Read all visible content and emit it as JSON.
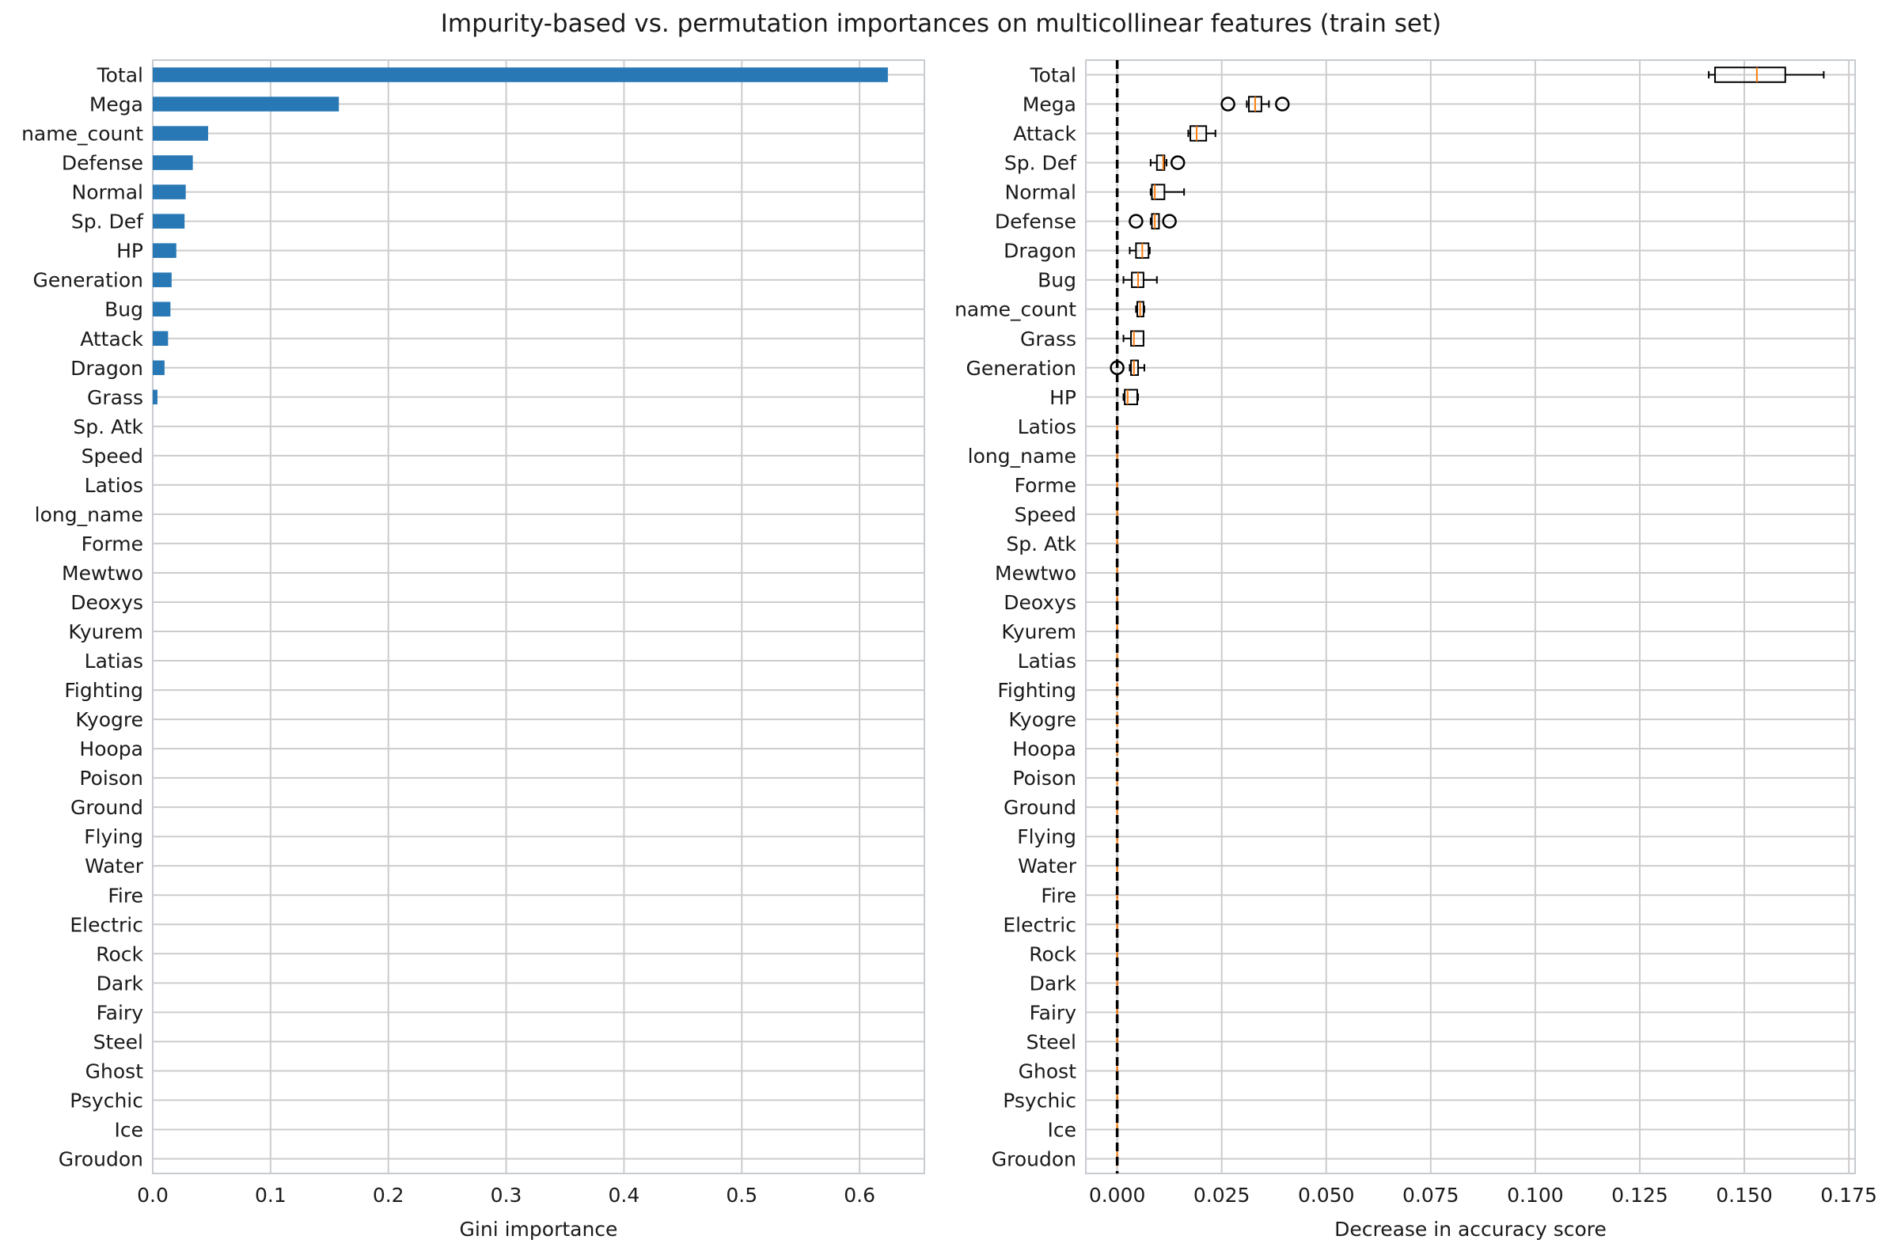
{
  "figure": {
    "title": "Impurity-based vs. permutation importances on multicollinear features (train set)"
  },
  "chart_data": [
    {
      "type": "bar",
      "orientation": "horizontal",
      "xlabel": "Gini importance",
      "xlim": [
        0,
        0.655
      ],
      "xticks": [
        0.0,
        0.1,
        0.2,
        0.3,
        0.4,
        0.5,
        0.6
      ],
      "xtick_labels": [
        "0.0",
        "0.1",
        "0.2",
        "0.3",
        "0.4",
        "0.5",
        "0.6"
      ],
      "grid": true,
      "bar_color": "#2878b5",
      "categories": [
        "Total",
        "Mega",
        "name_count",
        "Defense",
        "Normal",
        "Sp. Def",
        "HP",
        "Generation",
        "Bug",
        "Attack",
        "Dragon",
        "Grass",
        "Sp. Atk",
        "Speed",
        "Latios",
        "long_name",
        "Forme",
        "Mewtwo",
        "Deoxys",
        "Kyurem",
        "Latias",
        "Fighting",
        "Kyogre",
        "Hoopa",
        "Poison",
        "Ground",
        "Flying",
        "Water",
        "Fire",
        "Electric",
        "Rock",
        "Dark",
        "Fairy",
        "Steel",
        "Ghost",
        "Psychic",
        "Ice",
        "Groudon"
      ],
      "values": [
        0.624,
        0.158,
        0.047,
        0.034,
        0.028,
        0.027,
        0.02,
        0.016,
        0.015,
        0.013,
        0.01,
        0.004,
        0,
        0,
        0,
        0,
        0,
        0,
        0,
        0,
        0,
        0,
        0,
        0,
        0,
        0,
        0,
        0,
        0,
        0,
        0,
        0,
        0,
        0,
        0,
        0,
        0,
        0
      ]
    },
    {
      "type": "box",
      "orientation": "horizontal",
      "xlabel": "Decrease in accuracy score",
      "xlim": [
        -0.0075,
        0.1765
      ],
      "xticks": [
        0.0,
        0.025,
        0.05,
        0.075,
        0.1,
        0.125,
        0.15,
        0.175
      ],
      "xtick_labels": [
        "0.000",
        "0.025",
        "0.050",
        "0.075",
        "0.100",
        "0.125",
        "0.150",
        "0.175"
      ],
      "grid": true,
      "reference_line_x": 0,
      "median_color": "#ff7f0e",
      "categories": [
        "Total",
        "Mega",
        "Attack",
        "Sp. Def",
        "Normal",
        "Defense",
        "Dragon",
        "Bug",
        "name_count",
        "Grass",
        "Generation",
        "HP",
        "Latios",
        "long_name",
        "Forme",
        "Speed",
        "Sp. Atk",
        "Mewtwo",
        "Deoxys",
        "Kyurem",
        "Latias",
        "Fighting",
        "Kyogre",
        "Hoopa",
        "Poison",
        "Ground",
        "Flying",
        "Water",
        "Fire",
        "Electric",
        "Rock",
        "Dark",
        "Fairy",
        "Steel",
        "Ghost",
        "Psychic",
        "Ice",
        "Groudon"
      ],
      "boxes": [
        {
          "whislo": 0.1415,
          "q1": 0.143,
          "med": 0.153,
          "q3": 0.1598,
          "whishi": 0.169,
          "fliers": []
        },
        {
          "whislo": 0.031,
          "q1": 0.0315,
          "med": 0.033,
          "q3": 0.0345,
          "whishi": 0.0363,
          "fliers": [
            0.0265,
            0.0395
          ]
        },
        {
          "whislo": 0.017,
          "q1": 0.0175,
          "med": 0.019,
          "q3": 0.0213,
          "whishi": 0.0235,
          "fliers": []
        },
        {
          "whislo": 0.008,
          "q1": 0.0095,
          "med": 0.011,
          "q3": 0.0113,
          "whishi": 0.0118,
          "fliers": [
            0.0145
          ]
        },
        {
          "whislo": 0.008,
          "q1": 0.0083,
          "med": 0.009,
          "q3": 0.0113,
          "whishi": 0.016,
          "fliers": []
        },
        {
          "whislo": 0.008,
          "q1": 0.0083,
          "med": 0.009,
          "q3": 0.01,
          "whishi": 0.01,
          "fliers": [
            0.0045,
            0.0125
          ]
        },
        {
          "whislo": 0.003,
          "q1": 0.0045,
          "med": 0.006,
          "q3": 0.0075,
          "whishi": 0.0078,
          "fliers": []
        },
        {
          "whislo": 0.0015,
          "q1": 0.0035,
          "med": 0.005,
          "q3": 0.0063,
          "whishi": 0.0095,
          "fliers": []
        },
        {
          "whislo": 0.0045,
          "q1": 0.0048,
          "med": 0.0055,
          "q3": 0.0063,
          "whishi": 0.0065,
          "fliers": []
        },
        {
          "whislo": 0.0015,
          "q1": 0.0033,
          "med": 0.004,
          "q3": 0.0063,
          "whishi": 0.0063,
          "fliers": []
        },
        {
          "whislo": 0.003,
          "q1": 0.0033,
          "med": 0.004,
          "q3": 0.005,
          "whishi": 0.0065,
          "fliers": [
            0.0
          ]
        },
        {
          "whislo": 0.0015,
          "q1": 0.0018,
          "med": 0.0025,
          "q3": 0.0048,
          "whishi": 0.005,
          "fliers": []
        },
        {
          "whislo": 0,
          "q1": 0,
          "med": 0,
          "q3": 0,
          "whishi": 0,
          "fliers": []
        },
        {
          "whislo": 0,
          "q1": 0,
          "med": 0,
          "q3": 0,
          "whishi": 0,
          "fliers": []
        },
        {
          "whislo": 0,
          "q1": 0,
          "med": 0,
          "q3": 0,
          "whishi": 0,
          "fliers": []
        },
        {
          "whislo": 0,
          "q1": 0,
          "med": 0,
          "q3": 0,
          "whishi": 0,
          "fliers": []
        },
        {
          "whislo": 0,
          "q1": 0,
          "med": 0,
          "q3": 0,
          "whishi": 0,
          "fliers": []
        },
        {
          "whislo": 0,
          "q1": 0,
          "med": 0,
          "q3": 0,
          "whishi": 0,
          "fliers": []
        },
        {
          "whislo": 0,
          "q1": 0,
          "med": 0,
          "q3": 0,
          "whishi": 0,
          "fliers": []
        },
        {
          "whislo": 0,
          "q1": 0,
          "med": 0,
          "q3": 0,
          "whishi": 0,
          "fliers": []
        },
        {
          "whislo": 0,
          "q1": 0,
          "med": 0,
          "q3": 0,
          "whishi": 0,
          "fliers": []
        },
        {
          "whislo": 0,
          "q1": 0,
          "med": 0,
          "q3": 0,
          "whishi": 0,
          "fliers": []
        },
        {
          "whislo": 0,
          "q1": 0,
          "med": 0,
          "q3": 0,
          "whishi": 0,
          "fliers": []
        },
        {
          "whislo": 0,
          "q1": 0,
          "med": 0,
          "q3": 0,
          "whishi": 0,
          "fliers": []
        },
        {
          "whislo": 0,
          "q1": 0,
          "med": 0,
          "q3": 0,
          "whishi": 0,
          "fliers": []
        },
        {
          "whislo": 0,
          "q1": 0,
          "med": 0,
          "q3": 0,
          "whishi": 0,
          "fliers": []
        },
        {
          "whislo": 0,
          "q1": 0,
          "med": 0,
          "q3": 0,
          "whishi": 0,
          "fliers": []
        },
        {
          "whislo": 0,
          "q1": 0,
          "med": 0,
          "q3": 0,
          "whishi": 0,
          "fliers": []
        },
        {
          "whislo": 0,
          "q1": 0,
          "med": 0,
          "q3": 0,
          "whishi": 0,
          "fliers": []
        },
        {
          "whislo": 0,
          "q1": 0,
          "med": 0,
          "q3": 0,
          "whishi": 0,
          "fliers": []
        },
        {
          "whislo": 0,
          "q1": 0,
          "med": 0,
          "q3": 0,
          "whishi": 0,
          "fliers": []
        },
        {
          "whislo": 0,
          "q1": 0,
          "med": 0,
          "q3": 0,
          "whishi": 0,
          "fliers": []
        },
        {
          "whislo": 0,
          "q1": 0,
          "med": 0,
          "q3": 0,
          "whishi": 0,
          "fliers": []
        },
        {
          "whislo": 0,
          "q1": 0,
          "med": 0,
          "q3": 0,
          "whishi": 0,
          "fliers": []
        },
        {
          "whislo": 0,
          "q1": 0,
          "med": 0,
          "q3": 0,
          "whishi": 0,
          "fliers": []
        },
        {
          "whislo": 0,
          "q1": 0,
          "med": 0,
          "q3": 0,
          "whishi": 0,
          "fliers": []
        },
        {
          "whislo": 0,
          "q1": 0,
          "med": 0,
          "q3": 0,
          "whishi": 0,
          "fliers": []
        },
        {
          "whislo": 0,
          "q1": 0,
          "med": 0,
          "q3": 0,
          "whishi": 0,
          "fliers": []
        }
      ]
    }
  ]
}
